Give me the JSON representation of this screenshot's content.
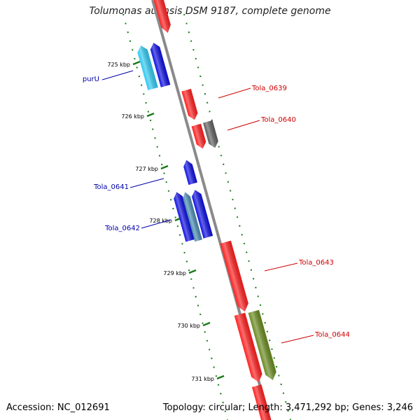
{
  "title": "Tolumonas auensis DSM 9187, complete genome",
  "accession": "Accession: NC_012691",
  "summary": "Topology: circular; Length: 3,471,292 bp; Genes: 3,246",
  "colors": {
    "backbone": "#8a8a8a",
    "tick": "#1a7a1a",
    "forward_label": "#cc0000",
    "reverse_label": "#0000aa"
  },
  "ticks": [
    {
      "label": "725 kbp"
    },
    {
      "label": "726 kbp"
    },
    {
      "label": "727 kbp"
    },
    {
      "label": "728 kbp"
    },
    {
      "label": "729 kbp"
    },
    {
      "label": "730 kbp"
    },
    {
      "label": "731 kbp"
    }
  ],
  "genes": [
    {
      "label": "",
      "color": "#ff2020",
      "strand": "forward"
    },
    {
      "label": "purU",
      "color": "#30c8f0",
      "strand": "reverse"
    },
    {
      "label": "",
      "color": "#1010e0",
      "strand": "reverse"
    },
    {
      "label": "Tola_0639",
      "color": "#ff2020",
      "strand": "forward"
    },
    {
      "label": "",
      "color": "#ff2020",
      "strand": "forward"
    },
    {
      "label": "Tola_0640",
      "color": "#606060",
      "strand": "forward"
    },
    {
      "label": "",
      "color": "#1010e0",
      "strand": "reverse"
    },
    {
      "label": "Tola_0641",
      "color": "#1010e0",
      "strand": "reverse"
    },
    {
      "label": "Tola_0642",
      "color": "#4a8ab0",
      "strand": "reverse"
    },
    {
      "label": "",
      "color": "#1010e0",
      "strand": "reverse"
    },
    {
      "label": "Tola_0643",
      "color": "#ff2020",
      "strand": "forward"
    },
    {
      "label": "",
      "color": "#ff2020",
      "strand": "forward"
    },
    {
      "label": "Tola_0644",
      "color": "#6a8a20",
      "strand": "forward"
    },
    {
      "label": "",
      "color": "#ff2020",
      "strand": "forward"
    }
  ]
}
